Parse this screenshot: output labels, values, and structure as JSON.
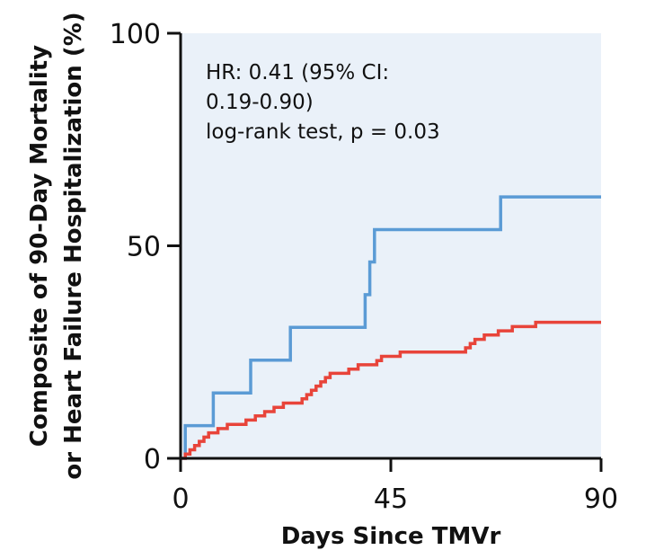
{
  "chart_data": {
    "type": "line",
    "step": true,
    "title": "",
    "xlabel": "Days Since TMVr",
    "ylabel_lines": [
      "Composite of 90-Day Mortality",
      "or Heart Failure Hospitalization (%)"
    ],
    "xlim": [
      0,
      90
    ],
    "ylim": [
      0,
      100
    ],
    "xticks": [
      0,
      45,
      90
    ],
    "yticks": [
      0,
      50,
      100
    ],
    "xtick_labels": [
      "0",
      "45",
      "90"
    ],
    "ytick_labels": [
      "0",
      "50",
      "100"
    ],
    "grid": false,
    "legend": "none",
    "plot_background": "#eaf1f9",
    "annotation_lines": [
      "HR: 0.41 (95% CI:",
      "0.19-0.90)",
      "log-rank test, p = 0.03"
    ],
    "series": [
      {
        "color": "#5b9bd5",
        "points": [
          [
            0,
            0
          ],
          [
            1,
            0
          ],
          [
            1,
            7.7
          ],
          [
            7,
            7.7
          ],
          [
            7,
            15.4
          ],
          [
            15,
            15.4
          ],
          [
            15,
            23.1
          ],
          [
            23.5,
            23.1
          ],
          [
            23.5,
            30.8
          ],
          [
            39.5,
            30.8
          ],
          [
            39.5,
            38.5
          ],
          [
            40.5,
            38.5
          ],
          [
            40.5,
            46.2
          ],
          [
            41.5,
            46.2
          ],
          [
            41.5,
            53.8
          ],
          [
            68.5,
            53.8
          ],
          [
            68.5,
            61.5
          ],
          [
            90,
            61.5
          ]
        ]
      },
      {
        "color": "#e8443a",
        "points": [
          [
            0,
            0
          ],
          [
            1,
            0
          ],
          [
            1,
            1
          ],
          [
            2,
            1
          ],
          [
            2,
            2
          ],
          [
            3,
            2
          ],
          [
            3,
            3
          ],
          [
            4,
            3
          ],
          [
            4,
            4
          ],
          [
            5,
            4
          ],
          [
            5,
            5
          ],
          [
            6,
            5
          ],
          [
            6,
            6
          ],
          [
            8,
            6
          ],
          [
            8,
            7
          ],
          [
            10,
            7
          ],
          [
            10,
            8
          ],
          [
            14,
            8
          ],
          [
            14,
            9
          ],
          [
            16,
            9
          ],
          [
            16,
            10
          ],
          [
            18,
            10
          ],
          [
            18,
            11
          ],
          [
            20,
            11
          ],
          [
            20,
            12
          ],
          [
            22,
            12
          ],
          [
            22,
            13
          ],
          [
            26,
            13
          ],
          [
            26,
            14
          ],
          [
            27,
            14
          ],
          [
            27,
            15
          ],
          [
            28,
            15
          ],
          [
            28,
            16
          ],
          [
            29,
            16
          ],
          [
            29,
            17
          ],
          [
            30,
            17
          ],
          [
            30,
            18
          ],
          [
            31,
            18
          ],
          [
            31,
            19
          ],
          [
            32,
            19
          ],
          [
            32,
            20
          ],
          [
            36,
            20
          ],
          [
            36,
            21
          ],
          [
            38,
            21
          ],
          [
            38,
            22
          ],
          [
            42,
            22
          ],
          [
            42,
            23
          ],
          [
            43,
            23
          ],
          [
            43,
            24
          ],
          [
            47,
            24
          ],
          [
            47,
            25
          ],
          [
            61,
            25
          ],
          [
            61,
            26
          ],
          [
            62,
            26
          ],
          [
            62,
            27
          ],
          [
            63,
            27
          ],
          [
            63,
            28
          ],
          [
            65,
            28
          ],
          [
            65,
            29
          ],
          [
            68,
            29
          ],
          [
            68,
            30
          ],
          [
            71,
            30
          ],
          [
            71,
            31
          ],
          [
            76,
            31
          ],
          [
            76,
            32
          ],
          [
            90,
            32
          ]
        ]
      }
    ]
  }
}
